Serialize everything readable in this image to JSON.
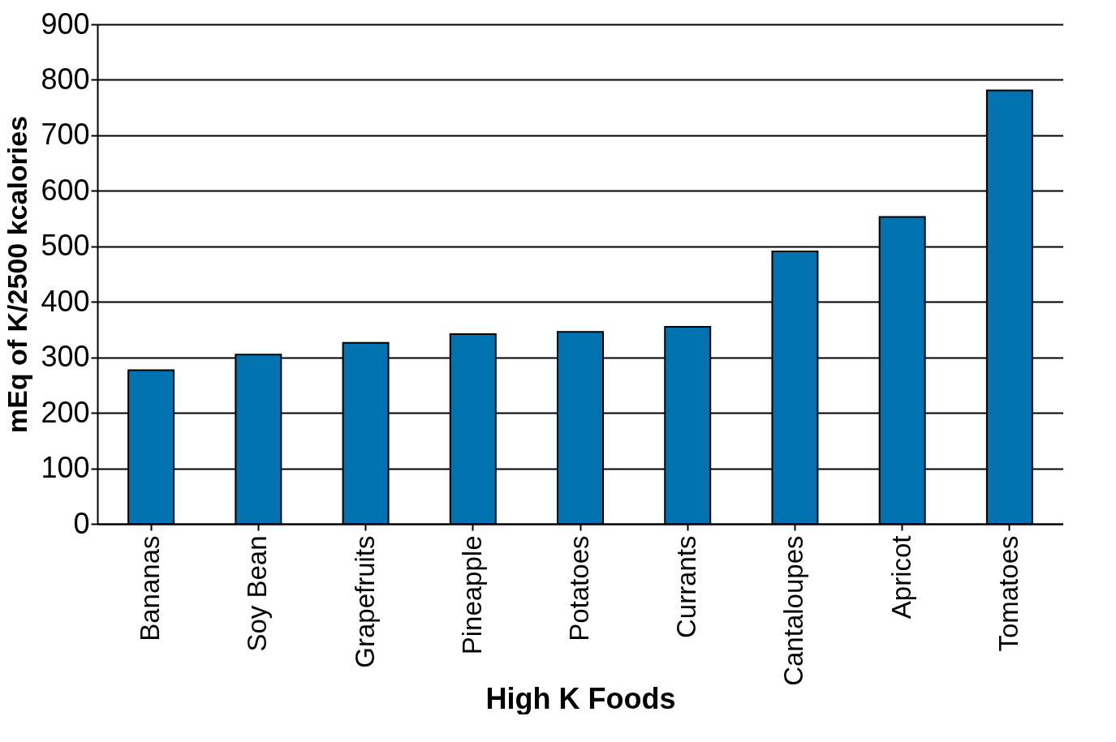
{
  "chart_data": {
    "type": "bar",
    "xlabel": "High K Foods",
    "ylabel": "mEq of K/2500 kcalories",
    "categories": [
      "Bananas",
      "Soy Bean",
      "Grapefruits",
      "Pineapple",
      "Potatoes",
      "Currants",
      "Cantaloupes",
      "Apricot",
      "Tomatoes"
    ],
    "values": [
      277,
      305,
      326,
      342,
      346,
      355,
      491,
      553,
      781
    ],
    "color": "#0072b0",
    "ylim": [
      0,
      900
    ],
    "yticks": [
      0,
      100,
      200,
      300,
      400,
      500,
      600,
      700,
      800,
      900
    ],
    "grid": "y"
  }
}
